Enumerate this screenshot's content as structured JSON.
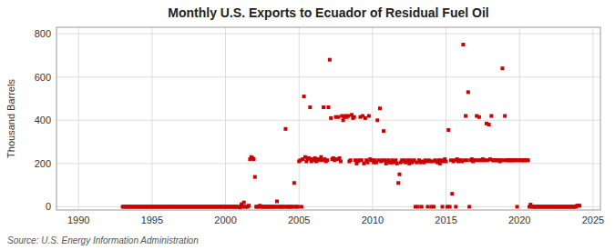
{
  "chart_data": {
    "type": "scatter",
    "title": "Monthly U.S. Exports to Ecuador of Residual Fuel Oil",
    "y_label": "Thousand Barrels",
    "source": "Source: U.S. Energy Information Administration",
    "color": "#cc0000",
    "marker": "square",
    "grid": true,
    "xlim": [
      1988.5,
      2025.5
    ],
    "xticks": [
      1990,
      1995,
      2000,
      2005,
      2010,
      2015,
      2020,
      2025
    ],
    "ylim": [
      -15,
      830
    ],
    "yticks": [
      0,
      200,
      400,
      600,
      800
    ],
    "x": [
      1993.0,
      1993.083,
      1993.167,
      1993.25,
      1993.333,
      1993.417,
      1993.5,
      1993.583,
      1993.667,
      1993.75,
      1993.833,
      1993.917,
      1994.0,
      1994.083,
      1994.167,
      1994.25,
      1994.333,
      1994.417,
      1994.5,
      1994.583,
      1994.667,
      1994.75,
      1994.833,
      1994.917,
      1995.0,
      1995.083,
      1995.167,
      1995.25,
      1995.333,
      1995.417,
      1995.5,
      1995.583,
      1995.667,
      1995.75,
      1995.833,
      1995.917,
      1996.0,
      1996.083,
      1996.167,
      1996.25,
      1996.333,
      1996.417,
      1996.5,
      1996.583,
      1996.667,
      1996.75,
      1996.833,
      1996.917,
      1997.0,
      1997.083,
      1997.167,
      1997.25,
      1997.333,
      1997.417,
      1997.5,
      1997.583,
      1997.667,
      1997.75,
      1997.833,
      1997.917,
      1998.0,
      1998.083,
      1998.167,
      1998.25,
      1998.333,
      1998.417,
      1998.5,
      1998.583,
      1998.667,
      1998.75,
      1998.833,
      1998.917,
      1999.0,
      1999.083,
      1999.167,
      1999.25,
      1999.333,
      1999.417,
      1999.5,
      1999.583,
      1999.667,
      1999.75,
      1999.833,
      1999.917,
      2000.0,
      2000.083,
      2000.167,
      2000.25,
      2000.333,
      2000.417,
      2000.5,
      2000.583,
      2000.667,
      2000.75,
      2000.833,
      2000.917,
      2001.0,
      2001.083,
      2001.167,
      2001.25,
      2001.333,
      2001.417,
      2001.5,
      2001.583,
      2001.667,
      2001.75,
      2001.833,
      2001.917,
      2002.0,
      2002.083,
      2002.167,
      2002.25,
      2002.333,
      2002.417,
      2002.5,
      2002.583,
      2002.667,
      2002.75,
      2002.833,
      2002.917,
      2003.0,
      2003.083,
      2003.167,
      2003.25,
      2003.333,
      2003.417,
      2003.5,
      2003.583,
      2003.667,
      2003.75,
      2003.833,
      2003.917,
      2004.0,
      2004.083,
      2004.167,
      2004.25,
      2004.333,
      2004.417,
      2004.5,
      2004.583,
      2004.667,
      2004.75,
      2004.833,
      2004.917,
      2005.0,
      2005.083,
      2005.167,
      2005.25,
      2005.333,
      2005.417,
      2005.5,
      2005.583,
      2005.667,
      2005.75,
      2005.833,
      2005.917,
      2006.0,
      2006.083,
      2006.167,
      2006.25,
      2006.333,
      2006.417,
      2006.5,
      2006.583,
      2006.667,
      2006.75,
      2006.833,
      2006.917,
      2007.0,
      2007.083,
      2007.167,
      2007.25,
      2007.333,
      2007.417,
      2007.5,
      2007.583,
      2007.667,
      2007.75,
      2007.833,
      2007.917,
      2008.0,
      2008.083,
      2008.167,
      2008.25,
      2008.333,
      2008.417,
      2008.5,
      2008.583,
      2008.667,
      2008.75,
      2008.833,
      2008.917,
      2009.0,
      2009.083,
      2009.167,
      2009.25,
      2009.333,
      2009.417,
      2009.5,
      2009.583,
      2009.667,
      2009.75,
      2009.833,
      2009.917,
      2010.0,
      2010.083,
      2010.167,
      2010.25,
      2010.333,
      2010.417,
      2010.5,
      2010.583,
      2010.667,
      2010.75,
      2010.833,
      2010.917,
      2011.0,
      2011.083,
      2011.167,
      2011.25,
      2011.333,
      2011.417,
      2011.5,
      2011.583,
      2011.667,
      2011.75,
      2011.833,
      2011.917,
      2012.0,
      2012.083,
      2012.167,
      2012.25,
      2012.333,
      2012.417,
      2012.5,
      2012.583,
      2012.667,
      2012.75,
      2012.833,
      2012.917,
      2013.0,
      2013.083,
      2013.167,
      2013.25,
      2013.333,
      2013.417,
      2013.5,
      2013.583,
      2013.667,
      2013.75,
      2013.833,
      2013.917,
      2014.0,
      2014.083,
      2014.167,
      2014.25,
      2014.333,
      2014.417,
      2014.5,
      2014.583,
      2014.667,
      2014.75,
      2014.833,
      2014.917,
      2015.0,
      2015.083,
      2015.167,
      2015.25,
      2015.333,
      2015.417,
      2015.5,
      2015.583,
      2015.667,
      2015.75,
      2015.833,
      2015.917,
      2016.0,
      2016.083,
      2016.167,
      2016.25,
      2016.333,
      2016.417,
      2016.5,
      2016.583,
      2016.667,
      2016.75,
      2016.833,
      2016.917,
      2017.0,
      2017.083,
      2017.167,
      2017.25,
      2017.333,
      2017.417,
      2017.5,
      2017.583,
      2017.667,
      2017.75,
      2017.833,
      2017.917,
      2018.0,
      2018.083,
      2018.167,
      2018.25,
      2018.333,
      2018.417,
      2018.5,
      2018.583,
      2018.667,
      2018.75,
      2018.833,
      2018.917,
      2019.0,
      2019.083,
      2019.167,
      2019.25,
      2019.333,
      2019.417,
      2019.5,
      2019.583,
      2019.667,
      2019.75,
      2019.833,
      2019.917,
      2020.0,
      2020.083,
      2020.167,
      2020.25,
      2020.333,
      2020.417,
      2020.5,
      2020.583,
      2020.667,
      2020.75,
      2020.833,
      2020.917,
      2021.0,
      2021.083,
      2021.167,
      2021.25,
      2021.333,
      2021.417,
      2021.5,
      2021.583,
      2021.667,
      2021.75,
      2021.833,
      2021.917,
      2022.0,
      2022.083,
      2022.167,
      2022.25,
      2022.333,
      2022.417,
      2022.5,
      2022.583,
      2022.667,
      2022.75,
      2022.833,
      2022.917,
      2023.0,
      2023.083,
      2023.167,
      2023.25,
      2023.333,
      2023.417,
      2023.5,
      2023.583,
      2023.667,
      2023.75,
      2023.833,
      2023.917,
      2024.0,
      2024.083
    ],
    "values": [
      0,
      0,
      0,
      0,
      0,
      0,
      0,
      0,
      0,
      0,
      0,
      0,
      0,
      0,
      0,
      0,
      0,
      0,
      0,
      0,
      0,
      0,
      0,
      0,
      0,
      0,
      0,
      0,
      0,
      0,
      0,
      0,
      0,
      0,
      0,
      0,
      0,
      0,
      0,
      0,
      0,
      0,
      0,
      0,
      0,
      0,
      0,
      0,
      0,
      0,
      0,
      0,
      0,
      0,
      0,
      0,
      0,
      0,
      0,
      0,
      0,
      0,
      0,
      0,
      0,
      0,
      0,
      0,
      0,
      0,
      0,
      0,
      0,
      0,
      0,
      0,
      0,
      0,
      0,
      0,
      0,
      0,
      0,
      0,
      0,
      0,
      0,
      0,
      0,
      0,
      0,
      0,
      0,
      0,
      0,
      0,
      -3,
      12,
      0,
      20,
      0,
      0,
      0,
      5,
      220,
      230,
      225,
      220,
      138,
      0,
      0,
      0,
      5,
      0,
      0,
      0,
      0,
      0,
      0,
      0,
      0,
      0,
      0,
      0,
      0,
      0,
      25,
      0,
      0,
      0,
      0,
      0,
      0,
      360,
      0,
      0,
      0,
      0,
      0,
      0,
      110,
      0,
      0,
      0,
      210,
      215,
      0,
      220,
      510,
      230,
      210,
      220,
      225,
      460,
      210,
      220,
      215,
      225,
      210,
      220,
      215,
      220,
      230,
      215,
      460,
      220,
      210,
      215,
      460,
      680,
      410,
      220,
      225,
      215,
      415,
      220,
      415,
      225,
      210,
      420,
      400,
      415,
      420,
      415,
      420,
      210,
      215,
      425,
      410,
      415,
      215,
      200,
      210,
      215,
      415,
      215,
      420,
      200,
      410,
      215,
      205,
      420,
      220,
      215,
      215,
      205,
      215,
      205,
      400,
      215,
      455,
      210,
      215,
      350,
      215,
      200,
      210,
      215,
      205,
      205,
      215,
      205,
      210,
      215,
      200,
      110,
      150,
      205,
      215,
      210,
      215,
      205,
      210,
      215,
      200,
      215,
      205,
      210,
      215,
      0,
      205,
      0,
      215,
      205,
      0,
      210,
      205,
      215,
      210,
      0,
      215,
      210,
      0,
      210,
      0,
      215,
      210,
      205,
      215,
      200,
      215,
      0,
      210,
      220,
      210,
      0,
      355,
      0,
      215,
      60,
      210,
      215,
      0,
      220,
      210,
      215,
      215,
      210,
      750,
      215,
      420,
      215,
      530,
      0,
      215,
      220,
      210,
      215,
      215,
      420,
      215,
      415,
      215,
      215,
      220,
      215,
      215,
      385,
      215,
      380,
      220,
      420,
      215,
      215,
      215,
      215,
      215,
      215,
      210,
      215,
      640,
      215,
      420,
      215,
      215,
      215,
      215,
      215,
      215,
      215,
      215,
      215,
      0,
      215,
      215,
      215,
      215,
      215,
      215,
      215,
      215,
      215,
      0,
      10,
      0,
      0,
      0,
      0,
      0,
      0,
      0,
      0,
      0,
      0,
      0,
      0,
      0,
      0,
      0,
      0,
      0,
      0,
      0,
      0,
      0,
      0,
      0,
      0,
      0,
      0,
      0,
      0,
      0,
      0,
      0,
      0,
      0,
      0,
      0,
      0,
      0,
      5,
      5,
      5
    ]
  }
}
